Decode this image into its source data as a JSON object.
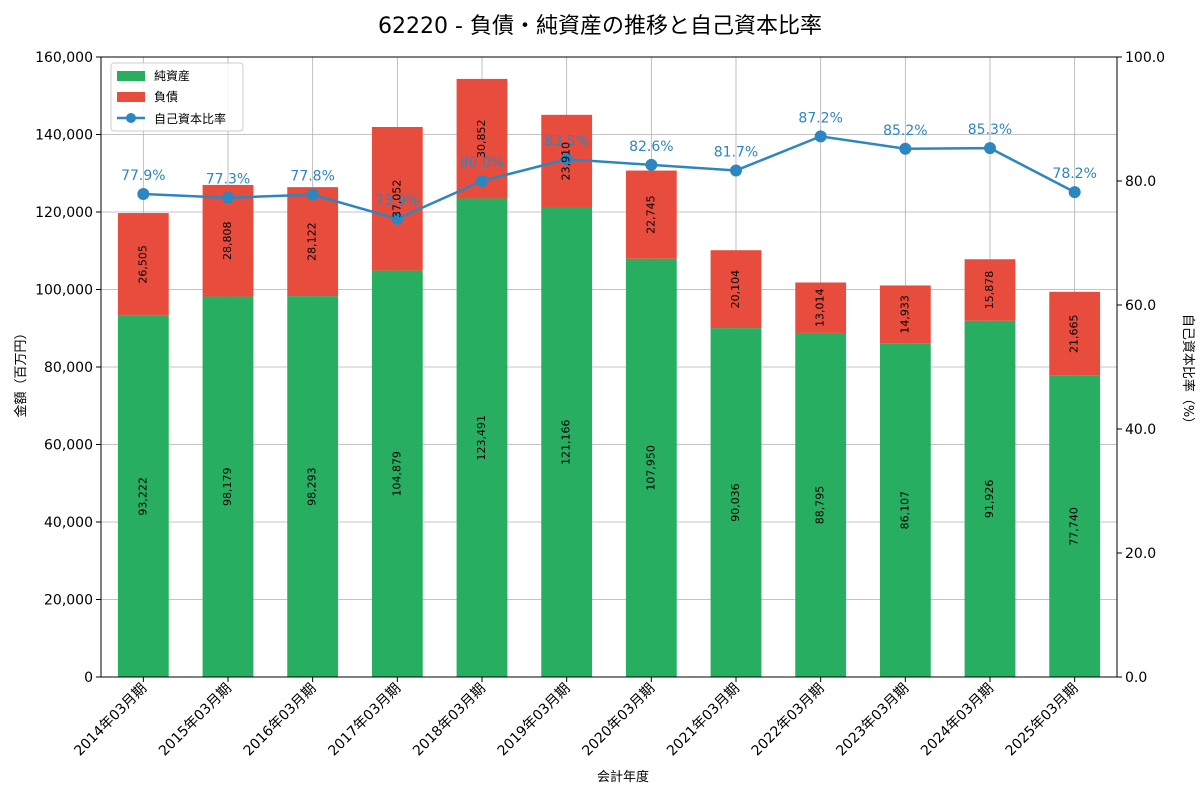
{
  "chart_data": {
    "type": "bar",
    "title": "62220 - 負債・純資産の推移と自己資本比率",
    "xlabel": "会計年度",
    "ylabel": "金額（百万円）",
    "y2label": "自己資本比率（%）",
    "categories": [
      "2014年03月期",
      "2015年03月期",
      "2016年03月期",
      "2017年03月期",
      "2018年03月期",
      "2019年03月期",
      "2020年03月期",
      "2021年03月期",
      "2022年03月期",
      "2023年03月期",
      "2024年03月期",
      "2025年03月期"
    ],
    "ylim": [
      0,
      160000
    ],
    "y2lim": [
      0,
      100
    ],
    "y_ticks": [
      "0",
      "20,000",
      "40,000",
      "60,000",
      "80,000",
      "100,000",
      "120,000",
      "140,000",
      "160,000"
    ],
    "y2_ticks": [
      "0.0",
      "20.0",
      "40.0",
      "60.0",
      "80.0",
      "100.0"
    ],
    "grid": true,
    "legend_position": "top-left",
    "series": [
      {
        "name": "純資産",
        "kind": "stacked-bar",
        "color": "#27ae60",
        "values": [
          93222,
          98179,
          98293,
          104879,
          123491,
          121166,
          107950,
          90036,
          88795,
          86107,
          91926,
          77740
        ],
        "labels": [
          "93,222",
          "98,179",
          "98,293",
          "104,879",
          "123,491",
          "121,166",
          "107,950",
          "90,036",
          "88,795",
          "86,107",
          "91,926",
          "77,740"
        ]
      },
      {
        "name": "負債",
        "kind": "stacked-bar",
        "color": "#e74c3c",
        "values": [
          26505,
          28808,
          28122,
          37052,
          30852,
          23910,
          22745,
          20104,
          13014,
          14933,
          15878,
          21665
        ],
        "labels": [
          "26,505",
          "28,808",
          "28,122",
          "37,052",
          "30,852",
          "23,910",
          "22,745",
          "20,104",
          "13,014",
          "14,933",
          "15,878",
          "21,665"
        ]
      },
      {
        "name": "自己資本比率",
        "kind": "line",
        "axis": "right",
        "color": "#2e86c1",
        "values": [
          77.9,
          77.3,
          77.8,
          73.9,
          80.0,
          83.5,
          82.6,
          81.7,
          87.2,
          85.2,
          85.3,
          78.2
        ],
        "labels": [
          "77.9%",
          "77.3%",
          "77.8%",
          "73.9%",
          "80.0%",
          "83.5%",
          "82.6%",
          "81.7%",
          "87.2%",
          "85.2%",
          "85.3%",
          "78.2%"
        ]
      }
    ]
  }
}
